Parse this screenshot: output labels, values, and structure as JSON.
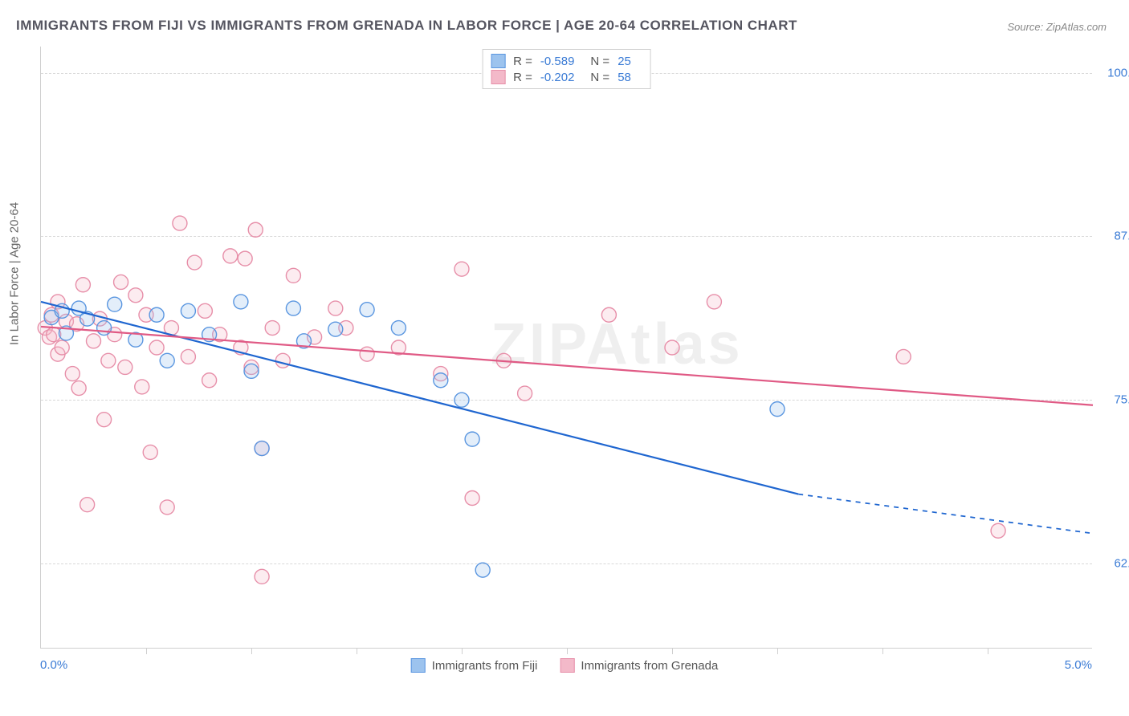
{
  "title": "IMMIGRANTS FROM FIJI VS IMMIGRANTS FROM GRENADA IN LABOR FORCE | AGE 20-64 CORRELATION CHART",
  "source": "Source: ZipAtlas.com",
  "watermark": "ZIPAtlas",
  "yaxis_title": "In Labor Force | Age 20-64",
  "chart": {
    "type": "scatter-with-regression",
    "xlim": [
      0.0,
      5.0
    ],
    "ylim": [
      56.0,
      102.0
    ],
    "y_gridlines": [
      62.5,
      75.0,
      87.5,
      100.0
    ],
    "x_ticks": [
      0.5,
      1.0,
      1.5,
      2.0,
      2.5,
      3.0,
      3.5,
      4.0,
      4.5
    ],
    "xlabel_min": "0.0%",
    "xlabel_max": "5.0%",
    "background_color": "#ffffff",
    "grid_color": "#d8d8d8",
    "marker_radius": 9,
    "marker_fill_opacity": 0.28,
    "line_width": 2.2
  },
  "series": [
    {
      "name": "Immigrants from Fiji",
      "color_stroke": "#5a96e0",
      "color_fill": "#9cc3ee",
      "line_color": "#1f66d0",
      "R": "-0.589",
      "N": "25",
      "points": [
        [
          0.05,
          81.3
        ],
        [
          0.1,
          81.8
        ],
        [
          0.12,
          80.1
        ],
        [
          0.18,
          82.0
        ],
        [
          0.22,
          81.2
        ],
        [
          0.3,
          80.5
        ],
        [
          0.35,
          82.3
        ],
        [
          0.45,
          79.6
        ],
        [
          0.55,
          81.5
        ],
        [
          0.6,
          78.0
        ],
        [
          0.7,
          81.8
        ],
        [
          0.8,
          80.0
        ],
        [
          0.95,
          82.5
        ],
        [
          1.0,
          77.2
        ],
        [
          1.05,
          71.3
        ],
        [
          1.2,
          82.0
        ],
        [
          1.25,
          79.5
        ],
        [
          1.4,
          80.4
        ],
        [
          1.55,
          81.9
        ],
        [
          1.7,
          80.5
        ],
        [
          1.9,
          76.5
        ],
        [
          2.0,
          75.0
        ],
        [
          2.05,
          72.0
        ],
        [
          2.1,
          62.0
        ],
        [
          3.5,
          74.3
        ]
      ],
      "regression": {
        "x1": 0.0,
        "y1": 82.5,
        "x2": 3.6,
        "y2": 67.8
      },
      "regression_extrap": {
        "x1": 3.6,
        "y1": 67.8,
        "x2": 5.0,
        "y2": 64.8
      }
    },
    {
      "name": "Immigrants from Grenada",
      "color_stroke": "#e78fa9",
      "color_fill": "#f3b9c9",
      "line_color": "#e05a85",
      "R": "-0.202",
      "N": "58",
      "points": [
        [
          0.02,
          80.5
        ],
        [
          0.04,
          79.8
        ],
        [
          0.05,
          81.5
        ],
        [
          0.06,
          80.0
        ],
        [
          0.08,
          78.5
        ],
        [
          0.08,
          82.5
        ],
        [
          0.1,
          79.0
        ],
        [
          0.12,
          81.0
        ],
        [
          0.15,
          77.0
        ],
        [
          0.17,
          80.8
        ],
        [
          0.18,
          75.9
        ],
        [
          0.2,
          83.8
        ],
        [
          0.22,
          67.0
        ],
        [
          0.25,
          79.5
        ],
        [
          0.28,
          81.2
        ],
        [
          0.3,
          73.5
        ],
        [
          0.32,
          78.0
        ],
        [
          0.35,
          80.0
        ],
        [
          0.38,
          84.0
        ],
        [
          0.4,
          77.5
        ],
        [
          0.45,
          83.0
        ],
        [
          0.48,
          76.0
        ],
        [
          0.5,
          81.5
        ],
        [
          0.52,
          71.0
        ],
        [
          0.55,
          79.0
        ],
        [
          0.6,
          66.8
        ],
        [
          0.62,
          80.5
        ],
        [
          0.66,
          88.5
        ],
        [
          0.7,
          78.3
        ],
        [
          0.73,
          85.5
        ],
        [
          0.78,
          81.8
        ],
        [
          0.8,
          76.5
        ],
        [
          0.85,
          80.0
        ],
        [
          0.9,
          86.0
        ],
        [
          0.95,
          79.0
        ],
        [
          0.97,
          85.8
        ],
        [
          1.0,
          77.5
        ],
        [
          1.02,
          88.0
        ],
        [
          1.05,
          61.5
        ],
        [
          1.05,
          71.3
        ],
        [
          1.1,
          80.5
        ],
        [
          1.15,
          78.0
        ],
        [
          1.2,
          84.5
        ],
        [
          1.3,
          79.8
        ],
        [
          1.4,
          82.0
        ],
        [
          1.45,
          80.5
        ],
        [
          1.55,
          78.5
        ],
        [
          1.7,
          79.0
        ],
        [
          1.9,
          77.0
        ],
        [
          2.0,
          85.0
        ],
        [
          2.05,
          67.5
        ],
        [
          2.2,
          78.0
        ],
        [
          2.3,
          75.5
        ],
        [
          2.7,
          81.5
        ],
        [
          3.0,
          79.0
        ],
        [
          3.2,
          82.5
        ],
        [
          4.1,
          78.3
        ],
        [
          4.55,
          65.0
        ]
      ],
      "regression": {
        "x1": 0.0,
        "y1": 80.6,
        "x2": 5.0,
        "y2": 74.6
      }
    }
  ],
  "legend_bottom": [
    {
      "label": "Immigrants from Fiji",
      "stroke": "#5a96e0",
      "fill": "#9cc3ee"
    },
    {
      "label": "Immigrants from Grenada",
      "stroke": "#e78fa9",
      "fill": "#f3b9c9"
    }
  ]
}
